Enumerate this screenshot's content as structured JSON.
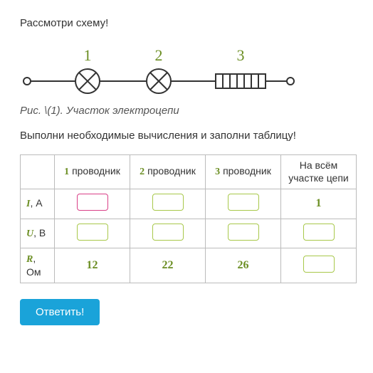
{
  "text": {
    "instruction": "Рассмотри схему!",
    "caption": "Рис. \\(1). Участок электроцепи",
    "task": "Выполни необходимые вычисления и заполни таблицу!",
    "button": "Ответить!"
  },
  "circuit": {
    "labels": [
      "1",
      "2",
      "3"
    ],
    "label_color": "#6b8e23",
    "line_color": "#333333",
    "components": [
      "lamp",
      "lamp",
      "resistor"
    ]
  },
  "table": {
    "col0_header": "",
    "headers": [
      {
        "num": "1",
        "label": "проводник"
      },
      {
        "num": "2",
        "label": "проводник"
      },
      {
        "num": "3",
        "label": "проводник"
      },
      {
        "num": "",
        "label": "На всём участке цепи"
      }
    ],
    "rows": [
      {
        "var": "I",
        "unit": ", А",
        "cells": [
          {
            "type": "input",
            "highlight": true
          },
          {
            "type": "input"
          },
          {
            "type": "input"
          },
          {
            "type": "value",
            "value": "1"
          }
        ]
      },
      {
        "var": "U",
        "unit": ", В",
        "cells": [
          {
            "type": "input"
          },
          {
            "type": "input"
          },
          {
            "type": "input"
          },
          {
            "type": "input"
          }
        ]
      },
      {
        "var": "R",
        "unit": ", Ом",
        "cells": [
          {
            "type": "value",
            "value": "12"
          },
          {
            "type": "value",
            "value": "22"
          },
          {
            "type": "value",
            "value": "26"
          },
          {
            "type": "input"
          }
        ]
      }
    ]
  },
  "style": {
    "accent": "#6b8e23",
    "input_border": "#a8c84a",
    "input_highlight": "#d93f87",
    "button_bg": "#1aa3d9"
  }
}
